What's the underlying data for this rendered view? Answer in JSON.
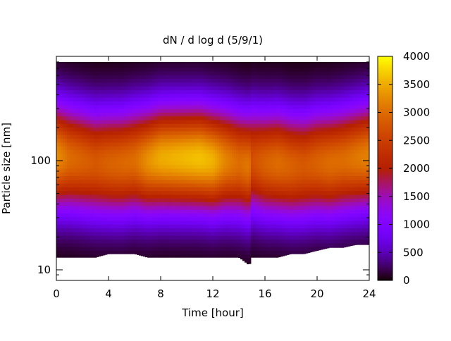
{
  "chart_data": {
    "type": "heatmap",
    "title": "dN / d log d (5/9/1)",
    "xlabel": "Time [hour]",
    "ylabel": "Particle size [nm]",
    "x_range": [
      0,
      24
    ],
    "y_range_nm": [
      8,
      900
    ],
    "y_scale": "log",
    "x_ticks": [
      0,
      4,
      8,
      12,
      16,
      20,
      24
    ],
    "y_ticks": [
      10,
      100
    ],
    "x_tick_labels": [
      "0",
      "4",
      "8",
      "12",
      "16",
      "20",
      "24"
    ],
    "y_tick_labels": [
      "10",
      "100"
    ],
    "colorbar": {
      "range": [
        0,
        4000
      ],
      "ticks": [
        0,
        500,
        1000,
        1500,
        2000,
        2500,
        3000,
        3500,
        4000
      ],
      "tick_labels": [
        "0",
        "500",
        "1000",
        "1500",
        "2000",
        "2500",
        "3000",
        "3500",
        "4000"
      ],
      "colormap": "gnuplot"
    },
    "time_steps": [
      0,
      1,
      2,
      3,
      4,
      5,
      6,
      7,
      8,
      9,
      10,
      11,
      12,
      13,
      14,
      14.8,
      15,
      16,
      17,
      18,
      19,
      20,
      21,
      22,
      23,
      24
    ],
    "peak_diameter_nm": [
      110,
      105,
      100,
      95,
      95,
      95,
      100,
      100,
      105,
      105,
      105,
      105,
      100,
      100,
      95,
      90,
      100,
      95,
      95,
      90,
      90,
      95,
      95,
      100,
      105,
      110
    ],
    "peak_value": [
      3300,
      3000,
      2900,
      2800,
      2900,
      2950,
      3000,
      3300,
      3500,
      3550,
      3600,
      3650,
      3550,
      3200,
      3000,
      3100,
      2700,
      2900,
      3000,
      2900,
      2800,
      2900,
      3000,
      3000,
      3100,
      3200
    ],
    "lower_cutoff_nm": [
      13,
      13,
      13,
      13,
      14,
      14,
      14,
      13,
      13,
      13,
      13,
      13,
      13,
      13,
      13,
      11,
      13,
      13,
      13,
      14,
      14,
      15,
      16,
      16,
      17,
      17
    ],
    "upper_cutoff_nm": [
      800,
      800,
      800,
      800,
      800,
      800,
      800,
      800,
      800,
      800,
      800,
      800,
      800,
      800,
      800,
      800,
      800,
      800,
      800,
      800,
      800,
      800,
      800,
      800,
      800,
      800
    ]
  }
}
